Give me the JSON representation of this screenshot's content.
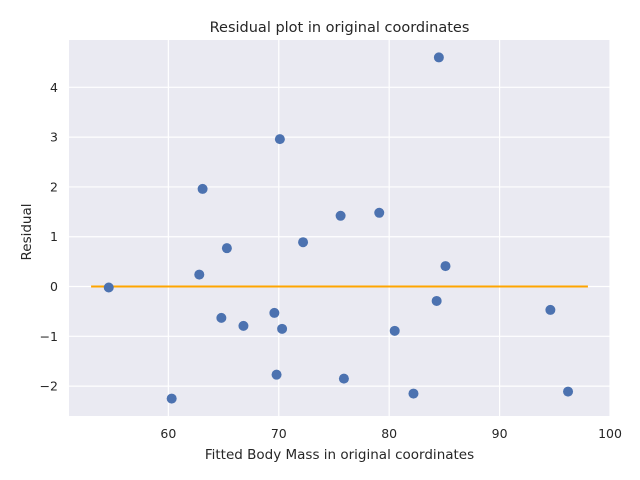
{
  "chart_data": {
    "type": "scatter",
    "title": "Residual plot in original coordinates",
    "xlabel": "Fitted Body Mass in original coordinates",
    "ylabel": "Residual",
    "xlim": [
      51,
      100
    ],
    "ylim": [
      -2.6,
      4.95
    ],
    "xticks": [
      60,
      70,
      80,
      90,
      100
    ],
    "yticks": [
      -2,
      -1,
      0,
      1,
      2,
      3,
      4
    ],
    "ytick_labels": [
      "−2",
      "−1",
      "0",
      "1",
      "2",
      "3",
      "4"
    ],
    "grid": true,
    "background_color": "#eaeaf2",
    "point_color": "#4c72b0",
    "line_color": "#ffa500",
    "reference_line": {
      "x": [
        53,
        98
      ],
      "y": [
        0,
        0
      ]
    },
    "points": [
      {
        "x": 54.6,
        "y": -0.02
      },
      {
        "x": 60.3,
        "y": -2.25
      },
      {
        "x": 62.8,
        "y": 0.24
      },
      {
        "x": 63.1,
        "y": 1.96
      },
      {
        "x": 64.8,
        "y": -0.63
      },
      {
        "x": 65.3,
        "y": 0.77
      },
      {
        "x": 66.8,
        "y": -0.79
      },
      {
        "x": 69.6,
        "y": -0.53
      },
      {
        "x": 69.8,
        "y": -1.77
      },
      {
        "x": 70.1,
        "y": 2.96
      },
      {
        "x": 70.3,
        "y": -0.85
      },
      {
        "x": 72.2,
        "y": 0.89
      },
      {
        "x": 75.6,
        "y": 1.42
      },
      {
        "x": 75.9,
        "y": -1.85
      },
      {
        "x": 79.1,
        "y": 1.48
      },
      {
        "x": 80.5,
        "y": -0.89
      },
      {
        "x": 82.2,
        "y": -2.15
      },
      {
        "x": 84.3,
        "y": -0.29
      },
      {
        "x": 84.5,
        "y": 4.6
      },
      {
        "x": 85.1,
        "y": 0.41
      },
      {
        "x": 94.6,
        "y": -0.47
      },
      {
        "x": 96.2,
        "y": -2.11
      }
    ]
  }
}
